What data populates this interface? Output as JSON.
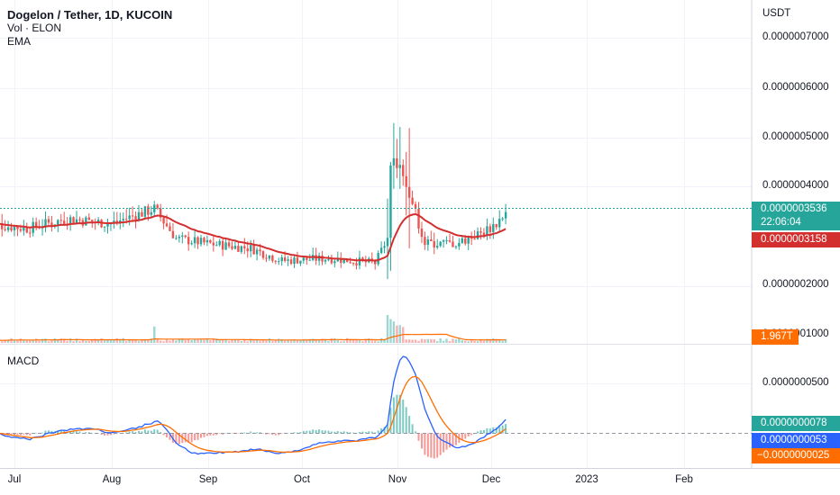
{
  "header": {
    "symbol": "Dogelon / Tether, 1D, KUCOIN",
    "volume_label": "Vol · ELON",
    "ema_label": "EMA",
    "macd_label": "MACD"
  },
  "price_scale": {
    "unit": "USDT",
    "ticks": [
      "0.0000007000",
      "0.0000006000",
      "0.0000005000",
      "0.0000004000",
      "0.0000002000",
      "0.0000001000"
    ]
  },
  "macd_scale": {
    "ticks": [
      "0.0000000500"
    ]
  },
  "price_tags": {
    "last_price": "0.0000003536",
    "countdown": "22:06:04",
    "ema_value": "0.0000003158",
    "volume_value": "1.967T"
  },
  "macd_tags": {
    "histogram": "0.0000000078",
    "macd": "0.0000000053",
    "signal": "−0.0000000025"
  },
  "time_axis": [
    "Jul",
    "Aug",
    "Sep",
    "Oct",
    "Nov",
    "Dec",
    "2023",
    "Feb"
  ],
  "colors": {
    "up": "#26a69a",
    "down": "#ef5350",
    "ema": "#d32f2f",
    "macd_line": "#2962ff",
    "signal_line": "#ff6d00",
    "last_price_tag": "#26a69a",
    "ema_tag": "#d32f2f",
    "volume_tag": "#ff6d00",
    "macd_tag": "#2962ff",
    "signal_tag": "#ff6d00"
  },
  "chart_data": {
    "type": "candlestick",
    "title": "Dogelon / Tether, 1D, KUCOIN",
    "price_unit": "USDT",
    "price_anchors": [
      {
        "date": "Jun 22",
        "close": 3.3e-07
      },
      {
        "date": "Jul 5",
        "close": 3.2e-07
      },
      {
        "date": "Jul 18",
        "close": 3.4e-07
      },
      {
        "date": "Aug 1",
        "close": 3.3e-07
      },
      {
        "date": "Aug 15",
        "close": 3.6e-07
      },
      {
        "date": "Aug 22",
        "close": 3e-07
      },
      {
        "date": "Sep 1",
        "close": 2.9e-07
      },
      {
        "date": "Sep 15",
        "close": 2.8e-07
      },
      {
        "date": "Sep 25",
        "close": 2.55e-07
      },
      {
        "date": "Oct 10",
        "close": 2.6e-07
      },
      {
        "date": "Oct 25",
        "close": 2.5e-07
      },
      {
        "date": "Oct 29",
        "close": 3e-07
      },
      {
        "date": "Oct 30",
        "close": 4.4e-07
      },
      {
        "date": "Nov 2",
        "close": 4.6e-07
      },
      {
        "date": "Nov 7",
        "close": 3.5e-07
      },
      {
        "date": "Nov 10",
        "close": 2.9e-07
      },
      {
        "date": "Nov 20",
        "close": 2.9e-07
      },
      {
        "date": "Nov 28",
        "close": 3.1e-07
      },
      {
        "date": "Dec 3",
        "close": 3.3e-07
      },
      {
        "date": "Dec 6",
        "close": 3.536e-07
      }
    ],
    "last_price": 3.536e-07,
    "ema_last": 3.158e-07,
    "volume_last": "1.967T",
    "macd_last": {
      "histogram": 7.8e-09,
      "macd": 5.3e-09,
      "signal": -2.5e-09
    }
  }
}
